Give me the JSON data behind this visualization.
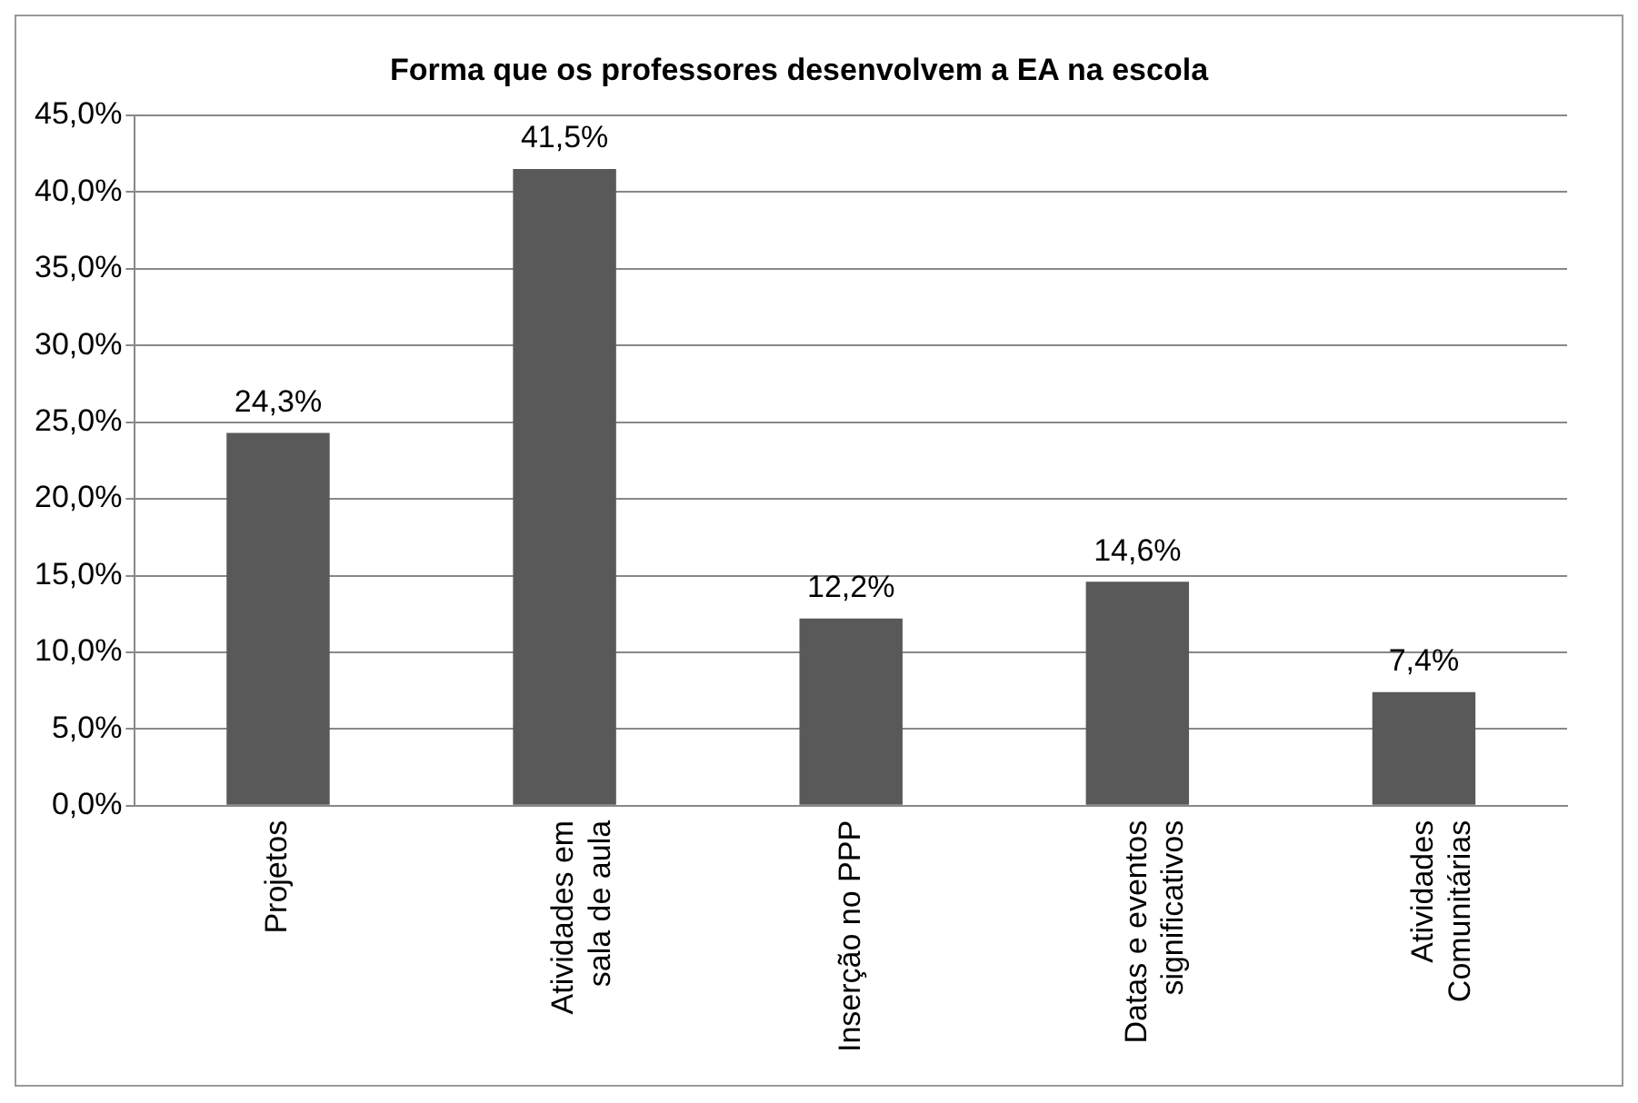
{
  "chart_data": {
    "type": "bar",
    "title": "Forma que os professores desenvolvem a EA na escola",
    "categories": [
      "Projetos",
      "Atividades em sala de aula",
      "Inserção no PPP",
      "Datas e eventos significativos",
      "Atividades Comunitárias"
    ],
    "values": [
      24.3,
      41.5,
      12.2,
      14.6,
      7.4
    ],
    "value_labels": [
      "24,3%",
      "41,5%",
      "12,2%",
      "14,6%",
      "7,4%"
    ],
    "color": "#595959",
    "ylim": [
      0,
      45
    ],
    "yticks": [
      {
        "value": 0,
        "label": "0,0%"
      },
      {
        "value": 5,
        "label": "5,0%"
      },
      {
        "value": 10,
        "label": "10,0%"
      },
      {
        "value": 15,
        "label": "15,0%"
      },
      {
        "value": 20,
        "label": "20,0%"
      },
      {
        "value": 25,
        "label": "25,0%"
      },
      {
        "value": 30,
        "label": "30,0%"
      },
      {
        "value": 35,
        "label": "35,0%"
      },
      {
        "value": 40,
        "label": "40,0%"
      },
      {
        "value": 45,
        "label": "45,0%"
      }
    ],
    "grid": "y"
  }
}
